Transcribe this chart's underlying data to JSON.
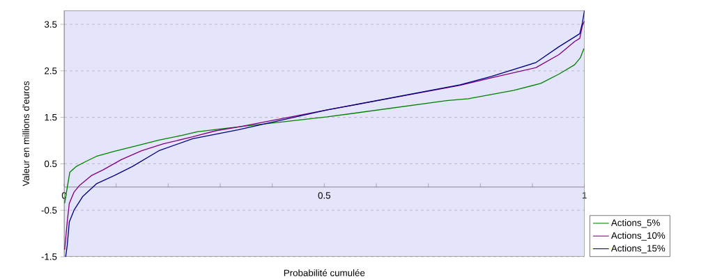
{
  "chart_data": {
    "type": "line",
    "xlabel": "Probabilité cumulée",
    "ylabel": "Valeur en millions d'euros",
    "xlim": [
      0,
      1
    ],
    "ylim": [
      -1.5,
      3.8
    ],
    "xticks": [
      0,
      {
        "value": 0.1,
        "label": null
      },
      {
        "value": 0.2,
        "label": null
      },
      {
        "value": 0.3,
        "label": null
      },
      {
        "value": 0.4,
        "label": null
      },
      0.5,
      {
        "value": 0.6,
        "label": null
      },
      {
        "value": 0.7,
        "label": null
      },
      {
        "value": 0.8,
        "label": null
      },
      {
        "value": 0.9,
        "label": null
      },
      1
    ],
    "yticks": [
      -1.5,
      -0.5,
      0.5,
      1.5,
      2.5,
      3.5
    ],
    "grid": "y",
    "legend": "bottom right",
    "marker": "none",
    "line_style": "solid",
    "series": [
      {
        "name": "Actions_5%",
        "color": "#008000",
        "x": [
          0.001,
          0.009,
          0.011,
          0.023,
          0.04,
          0.062,
          0.097,
          0.14,
          0.182,
          0.226,
          0.256,
          0.308,
          0.506,
          0.735,
          0.777,
          0.864,
          0.916,
          0.951,
          0.981,
          0.992,
          0.999
        ],
        "values": [
          -0.35,
          0.19,
          0.32,
          0.44,
          0.54,
          0.66,
          0.77,
          0.89,
          1.01,
          1.11,
          1.19,
          1.26,
          1.51,
          1.86,
          1.9,
          2.08,
          2.23,
          2.43,
          2.63,
          2.78,
          2.98
        ]
      },
      {
        "name": "Actions_10%",
        "color": "#800080",
        "x": [
          0.001,
          0.006,
          0.01,
          0.019,
          0.03,
          0.053,
          0.075,
          0.11,
          0.149,
          0.191,
          0.247,
          0.291,
          0.334,
          0.506,
          0.761,
          0.821,
          0.907,
          0.951,
          0.981,
          0.991,
          0.996,
          1
        ],
        "values": [
          -1.35,
          -0.75,
          -0.35,
          -0.11,
          0.04,
          0.25,
          0.37,
          0.59,
          0.78,
          0.93,
          1.08,
          1.21,
          1.29,
          1.66,
          2.19,
          2.35,
          2.57,
          2.85,
          3.13,
          3.2,
          3.47,
          3.57
        ]
      },
      {
        "name": "Actions_15%",
        "color": "#000080",
        "x": [
          0.003,
          0.006,
          0.01,
          0.019,
          0.036,
          0.062,
          0.097,
          0.131,
          0.182,
          0.247,
          0.334,
          0.506,
          0.761,
          0.821,
          0.907,
          0.951,
          0.981,
          0.991,
          0.996,
          1
        ],
        "values": [
          -1.5,
          -1.25,
          -0.75,
          -0.5,
          -0.2,
          0.07,
          0.25,
          0.44,
          0.78,
          1.04,
          1.23,
          1.66,
          2.2,
          2.38,
          2.68,
          3.02,
          3.23,
          3.3,
          3.53,
          3.8
        ]
      }
    ]
  }
}
